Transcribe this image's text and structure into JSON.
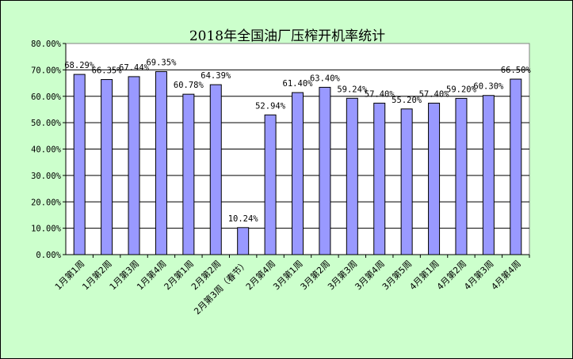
{
  "chart_data": {
    "type": "bar",
    "title": "2018年全国油厂压榨开机率统计",
    "categories": [
      "1月第1周",
      "1月第2周",
      "1月第3周",
      "1月第4周",
      "2月第1周",
      "2月第2周",
      "2月第3周（春节）",
      "2月第4周",
      "3月第1周",
      "3月第2周",
      "3月第3周",
      "3月第4周",
      "3月第5周",
      "4月第1周",
      "4月第2周",
      "4月第3周",
      "4月第4周"
    ],
    "values": [
      68.29,
      66.35,
      67.44,
      69.35,
      60.78,
      64.39,
      10.24,
      52.94,
      61.4,
      63.4,
      59.24,
      57.4,
      55.2,
      57.4,
      59.2,
      60.3,
      66.5
    ],
    "data_labels": [
      "68.29%",
      "66.35%",
      "67.44%",
      "69.35%",
      "60.78%",
      "64.39%",
      "10.24%",
      "52.94%",
      "61.40%",
      "63.40%",
      "59.24%",
      "57.40%",
      "55.20%",
      "57.40%",
      "59.20%",
      "60.30%",
      "66.50%"
    ],
    "yticks": [
      "0.00%",
      "10.00%",
      "20.00%",
      "30.00%",
      "40.00%",
      "50.00%",
      "60.00%",
      "70.00%",
      "80.00%"
    ],
    "ylim": [
      0,
      80
    ],
    "grid": true,
    "legend": "none",
    "colors": {
      "background": "#ccffcc",
      "plot": "#ffffff",
      "bar": "#9999ff",
      "bar_border": "#000000"
    }
  }
}
